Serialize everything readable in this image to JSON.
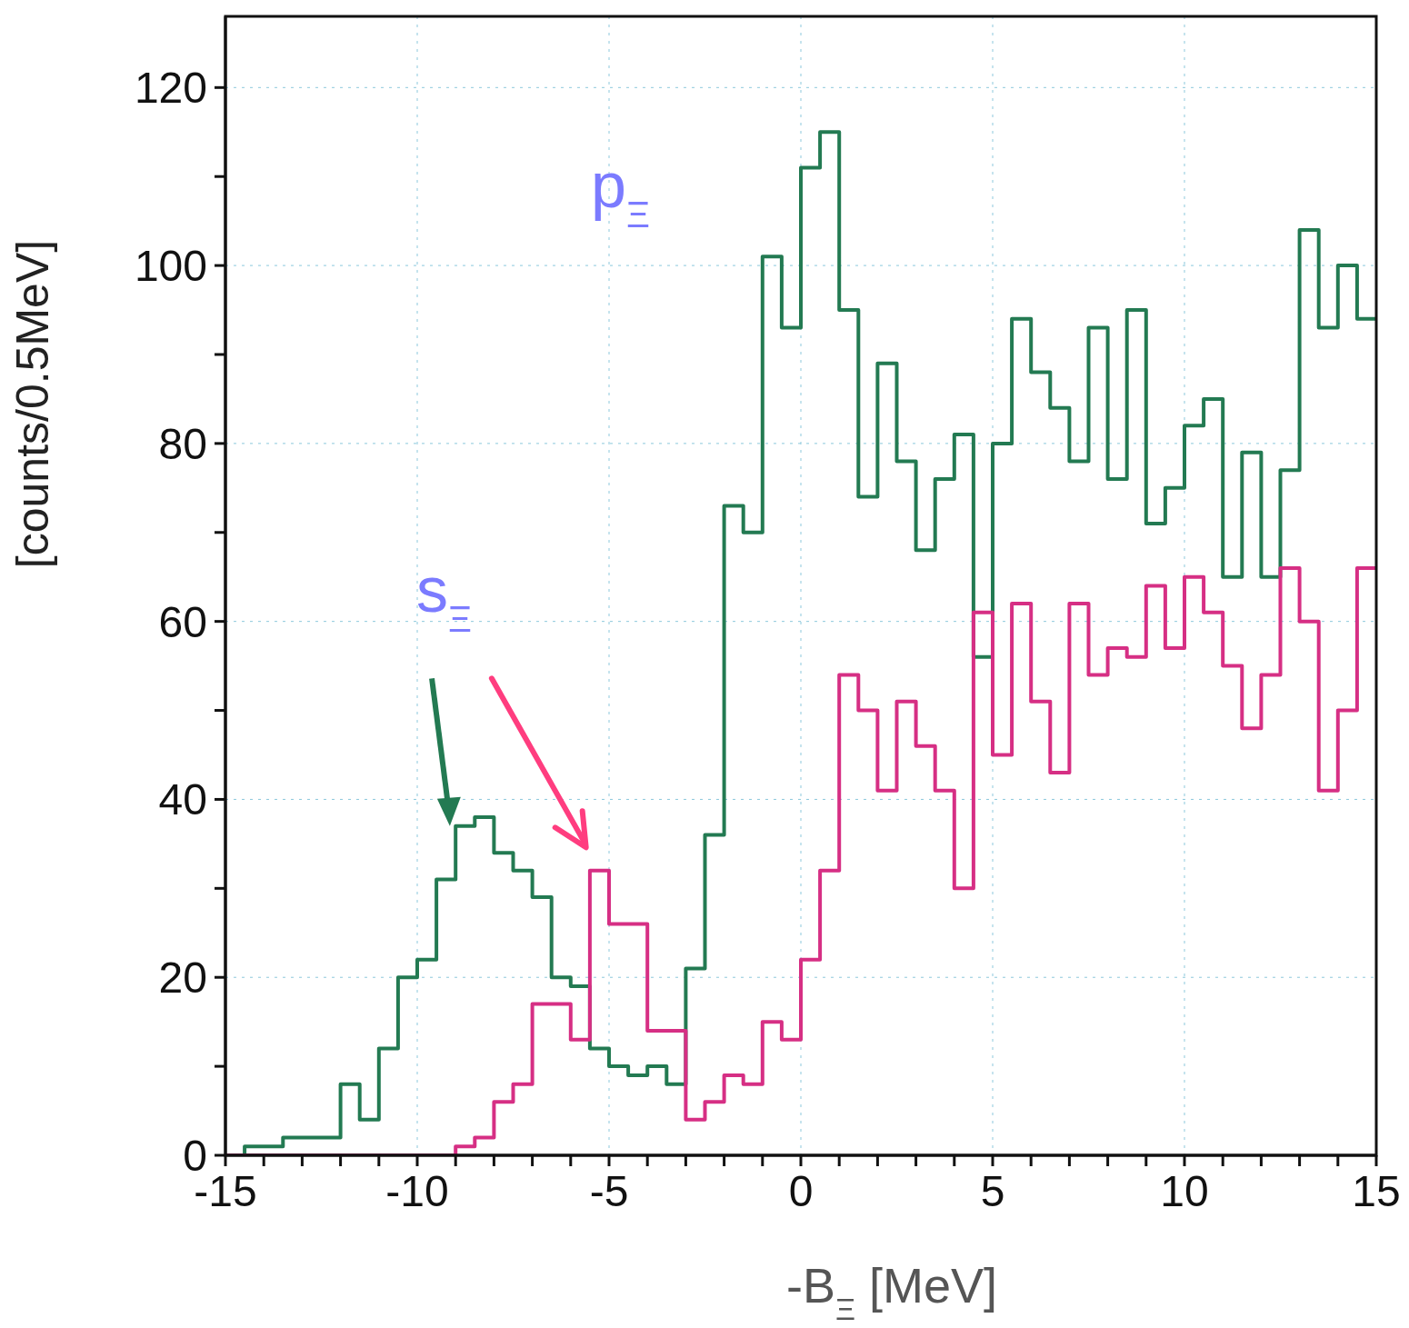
{
  "chart_data": {
    "type": "histogram",
    "xlabel": "-B$_{Ξ}$ [MeV]",
    "ylabel": "[counts/0.5MeV]",
    "bins": [
      -15,
      -14.5,
      -14,
      -13.5,
      -13,
      -12.5,
      -12,
      -11.5,
      -11,
      -10.5,
      -10,
      -9.5,
      -9,
      -8.5,
      -8,
      -7.5,
      -7,
      -6.5,
      -6,
      -5.5,
      -5,
      -4.5,
      -4,
      -3.5,
      -3,
      -2.5,
      -2,
      -1.5,
      -1,
      -0.5,
      0,
      0.5,
      1,
      1.5,
      2,
      2.5,
      3,
      3.5,
      4,
      4.5,
      5,
      5.5,
      6,
      6.5,
      7,
      7.5,
      8,
      8.5,
      9,
      9.5,
      10,
      10.5,
      11,
      11.5,
      12,
      12.5,
      13,
      13.5,
      14,
      14.5,
      15
    ],
    "series": [
      {
        "color": "#237a52",
        "values": [
          0,
          1,
          1,
          2,
          2,
          2,
          8,
          4,
          12,
          20,
          22,
          31,
          37,
          38,
          34,
          32,
          29,
          20,
          19,
          12,
          10,
          9,
          10,
          8,
          21,
          36,
          73,
          70,
          101,
          93,
          111,
          115,
          95,
          74,
          89,
          78,
          68,
          76,
          81,
          56,
          80,
          94,
          88,
          84,
          78,
          93,
          76,
          95,
          71,
          75,
          82,
          85,
          65,
          79,
          65,
          77,
          104,
          93,
          100,
          94
        ]
      },
      {
        "color": "#d62f84",
        "values": [
          0,
          0,
          0,
          0,
          0,
          0,
          0,
          0,
          0,
          0,
          0,
          0,
          1,
          2,
          6,
          8,
          17,
          17,
          13,
          32,
          26,
          26,
          14,
          14,
          4,
          6,
          9,
          8,
          15,
          13,
          22,
          32,
          54,
          50,
          41,
          51,
          46,
          41,
          30,
          61,
          45,
          62,
          51,
          43,
          62,
          54,
          57,
          56,
          64,
          57,
          65,
          61,
          55,
          48,
          54,
          66,
          60,
          41,
          50,
          66
        ]
      }
    ],
    "xlim": [
      -15,
      15
    ],
    "ylim": [
      0,
      128
    ],
    "xticks": [
      -15,
      {
        "value": -14,
        "label": null
      },
      {
        "value": -13,
        "label": null
      },
      {
        "value": -12,
        "label": null
      },
      {
        "value": -11,
        "label": null
      },
      -10,
      {
        "value": -9,
        "label": null
      },
      {
        "value": -8,
        "label": null
      },
      {
        "value": -7,
        "label": null
      },
      {
        "value": -6,
        "label": null
      },
      -5,
      {
        "value": -4,
        "label": null
      },
      {
        "value": -3,
        "label": null
      },
      {
        "value": -2,
        "label": null
      },
      {
        "value": -1,
        "label": null
      },
      0,
      {
        "value": 1,
        "label": null
      },
      {
        "value": 2,
        "label": null
      },
      {
        "value": 3,
        "label": null
      },
      {
        "value": 4,
        "label": null
      },
      5,
      {
        "value": 6,
        "label": null
      },
      {
        "value": 7,
        "label": null
      },
      {
        "value": 8,
        "label": null
      },
      {
        "value": 9,
        "label": null
      },
      10,
      {
        "value": 11,
        "label": null
      },
      {
        "value": 12,
        "label": null
      },
      {
        "value": 13,
        "label": null
      },
      {
        "value": 14,
        "label": null
      },
      15
    ],
    "yticks": [
      0,
      {
        "value": 10,
        "label": null
      },
      20,
      {
        "value": 30,
        "label": null
      },
      40,
      {
        "value": 50,
        "label": null
      },
      60,
      {
        "value": 70,
        "label": null
      },
      80,
      {
        "value": 90,
        "label": null
      },
      100,
      {
        "value": 110,
        "label": null
      },
      120
    ],
    "grid": true,
    "annotations": [
      "p$_{Ξ}$",
      "s$_{Ξ}$"
    ]
  }
}
